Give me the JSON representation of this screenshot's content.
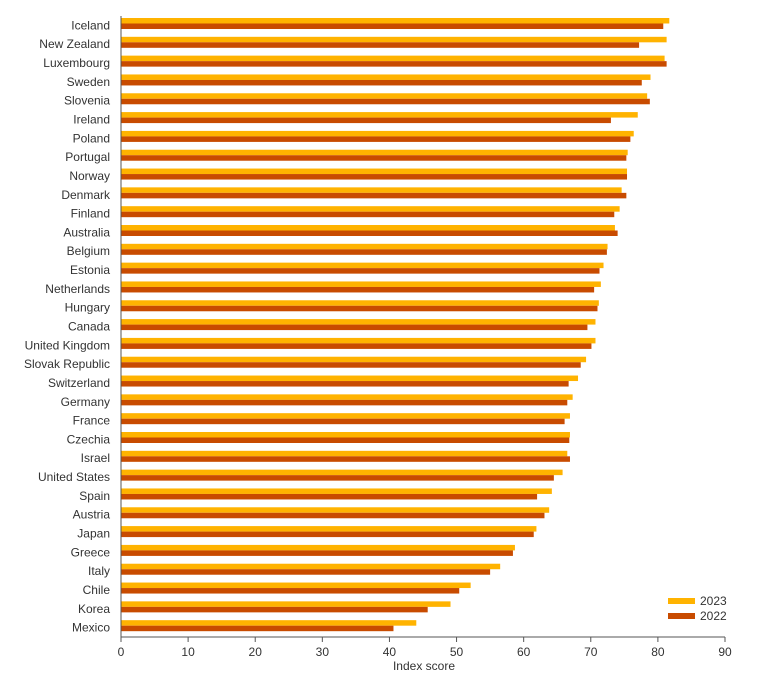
{
  "chart_data": {
    "type": "bar",
    "orientation": "horizontal",
    "title": "",
    "xlabel": "Index score",
    "ylabel": "",
    "xlim": [
      0,
      90
    ],
    "xticks": [
      0,
      10,
      20,
      30,
      40,
      50,
      60,
      70,
      80,
      90
    ],
    "grid": false,
    "legend_position": "bottom-right",
    "categories": [
      "Iceland",
      "New Zealand",
      "Luxembourg",
      "Sweden",
      "Slovenia",
      "Ireland",
      "Poland",
      "Portugal",
      "Norway",
      "Denmark",
      "Finland",
      "Australia",
      "Belgium",
      "Estonia",
      "Netherlands",
      "Hungary",
      "Canada",
      "United Kingdom",
      "Slovak Republic",
      "Switzerland",
      "Germany",
      "France",
      "Czechia",
      "Israel",
      "United States",
      "Spain",
      "Austria",
      "Japan",
      "Greece",
      "Italy",
      "Chile",
      "Korea",
      "Mexico"
    ],
    "series": [
      {
        "name": "2023",
        "color": "#FFB300",
        "values": [
          81.7,
          81.3,
          81.0,
          78.9,
          78.4,
          77.0,
          76.4,
          75.5,
          75.4,
          74.6,
          74.3,
          73.6,
          72.5,
          71.9,
          71.5,
          71.2,
          70.7,
          70.7,
          69.3,
          68.1,
          67.3,
          66.9,
          66.9,
          66.5,
          65.8,
          64.2,
          63.8,
          61.9,
          58.7,
          56.5,
          52.1,
          49.1,
          44.0
        ]
      },
      {
        "name": "2022",
        "color": "#C84B00",
        "values": [
          80.8,
          77.2,
          81.3,
          77.6,
          78.8,
          73.0,
          75.9,
          75.3,
          75.4,
          75.3,
          73.5,
          74.0,
          72.4,
          71.3,
          70.5,
          71.0,
          69.5,
          70.1,
          68.5,
          66.7,
          66.5,
          66.1,
          66.8,
          66.9,
          64.5,
          62.0,
          63.1,
          61.5,
          58.4,
          55.0,
          50.4,
          45.7,
          40.6
        ]
      }
    ]
  },
  "legend": [
    {
      "label": "2023",
      "color": "#FFB300"
    },
    {
      "label": "2022",
      "color": "#C84B00"
    }
  ]
}
